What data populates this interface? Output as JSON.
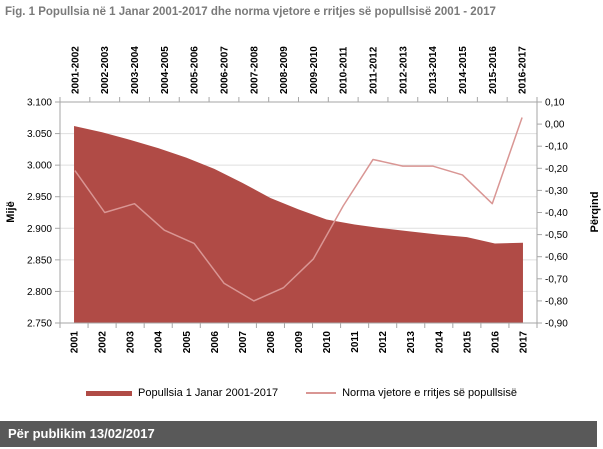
{
  "title": "Fig. 1 Popullsia në 1 Janar 2001-2017 dhe norma vjetore e rritjes së popullsisë 2001 - 2017",
  "colors": {
    "title_text": "#7A7A7A",
    "area": "#B04B46",
    "line": "#D99694",
    "grid": "#DFDFDF",
    "axis": "#A6A6A6",
    "footer_bg": "#595959",
    "footer_text": "#FFFFFF"
  },
  "legend": [
    {
      "label": "Popullsia 1 Janar 2001-2017",
      "swatch": "thick-bar"
    },
    {
      "label": "Norma vjetore e rritjes së popullsisë",
      "swatch": "thin-line"
    }
  ],
  "footer": {
    "text": "Për publikim 13/02/2017"
  },
  "chart_data": {
    "type": "area",
    "title": "Fig. 1 Popullsia në 1 Janar 2001-2017 dhe norma vjetore e rritjes së popullsisë 2001 - 2017",
    "grid": true,
    "legend_position": "bottom",
    "left_axis": {
      "title": "Mijë",
      "min": 2750,
      "max": 3100,
      "tick_labels": [
        "3.100",
        "3.050",
        "3.000",
        "2.950",
        "2.900",
        "2.850",
        "2.800",
        "2.750"
      ]
    },
    "right_axis": {
      "title": "Përqind",
      "min": -0.9,
      "max": 0.1,
      "tick_labels": [
        "0,10",
        "0,00",
        "-0,10",
        "-0,20",
        "-0,30",
        "-0,40",
        "-0,50",
        "-0,60",
        "-0,70",
        "-0,80",
        "-0,90"
      ]
    },
    "series": [
      {
        "name": "Popullsia 1 Janar 2001-2017",
        "type": "area",
        "axis": "left",
        "categories": [
          "2001",
          "2002",
          "2003",
          "2004",
          "2005",
          "2006",
          "2007",
          "2008",
          "2009",
          "2010",
          "2011",
          "2012",
          "2013",
          "2014",
          "2015",
          "2016",
          "2017"
        ],
        "values": [
          3062,
          3052,
          3040,
          3027,
          3012,
          2994,
          2972,
          2948,
          2930,
          2914,
          2906,
          2900,
          2895,
          2890,
          2886,
          2876,
          2877
        ]
      },
      {
        "name": "Norma vjetore e rritjes së popullsisë",
        "type": "line",
        "axis": "right",
        "categories": [
          "2001-2002",
          "2002-2003",
          "2003-2004",
          "2004-2005",
          "2005-2006",
          "2006-2007",
          "2007-2008",
          "2008-2009",
          "2009-2010",
          "2010-2011",
          "2011-2012",
          "2012-2013",
          "2013-2014",
          "2014-2015",
          "2015-2016",
          "2016-2017"
        ],
        "values": [
          -0.21,
          -0.4,
          -0.36,
          -0.48,
          -0.54,
          -0.72,
          -0.8,
          -0.74,
          -0.61,
          -0.37,
          -0.16,
          -0.19,
          -0.19,
          -0.23,
          -0.36,
          0.03
        ]
      }
    ]
  }
}
